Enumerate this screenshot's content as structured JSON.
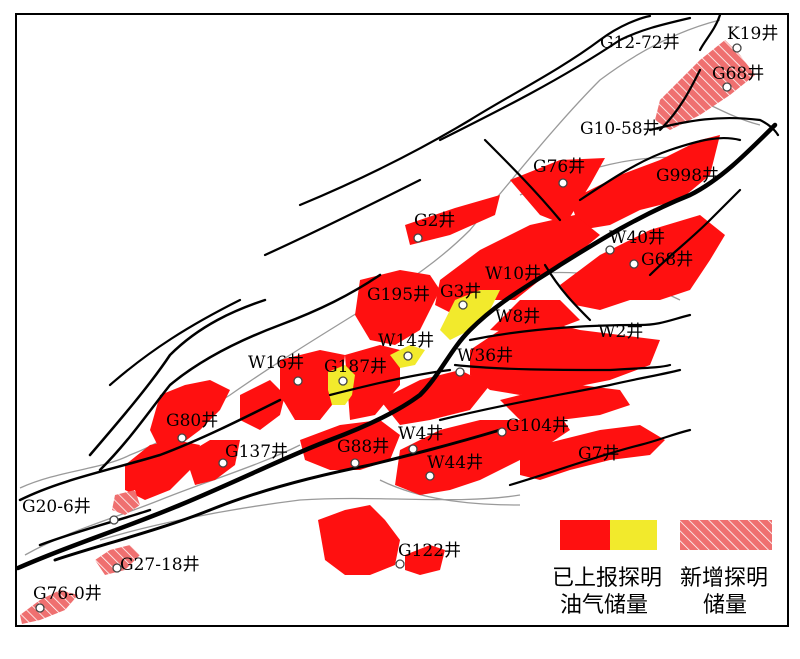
{
  "map": {
    "colors": {
      "reported": "#ff1010",
      "reported_gas": "#f2ea2c",
      "new": "#ef7070",
      "fault": "#000000",
      "contour": "#9a9a9a"
    },
    "wells": [
      {
        "id": "K19",
        "label": "K19井"
      },
      {
        "id": "G12-72",
        "label": "G12-72井"
      },
      {
        "id": "G68-n",
        "label": "G68井"
      },
      {
        "id": "G10-58",
        "label": "G10-58井"
      },
      {
        "id": "G76",
        "label": "G76井"
      },
      {
        "id": "G998",
        "label": "G998井"
      },
      {
        "id": "G2",
        "label": "G2井"
      },
      {
        "id": "W40",
        "label": "W40井"
      },
      {
        "id": "G68-s",
        "label": "G68井"
      },
      {
        "id": "W10",
        "label": "W10井"
      },
      {
        "id": "G195",
        "label": "G195井"
      },
      {
        "id": "G3",
        "label": "G3井"
      },
      {
        "id": "W8",
        "label": "W8井"
      },
      {
        "id": "W2",
        "label": "W2井"
      },
      {
        "id": "W14",
        "label": "W14井"
      },
      {
        "id": "W36",
        "label": "W36井"
      },
      {
        "id": "W16",
        "label": "W16井"
      },
      {
        "id": "G187",
        "label": "G187井"
      },
      {
        "id": "G80",
        "label": "G80井"
      },
      {
        "id": "W4",
        "label": "W4井"
      },
      {
        "id": "G104",
        "label": "G104井"
      },
      {
        "id": "G137",
        "label": "G137井"
      },
      {
        "id": "G88",
        "label": "G88井"
      },
      {
        "id": "W44",
        "label": "W44井"
      },
      {
        "id": "G7",
        "label": "G7井"
      },
      {
        "id": "G20-6",
        "label": "G20-6井"
      },
      {
        "id": "G122",
        "label": "G122井"
      },
      {
        "id": "G27-18",
        "label": "G27-18井"
      },
      {
        "id": "G76-0",
        "label": "G76-0井"
      }
    ],
    "legend": {
      "reported": {
        "line1": "已上报探明",
        "line2": "油气储量"
      },
      "new": {
        "line1": "新增探明",
        "line2": "储量"
      }
    }
  }
}
